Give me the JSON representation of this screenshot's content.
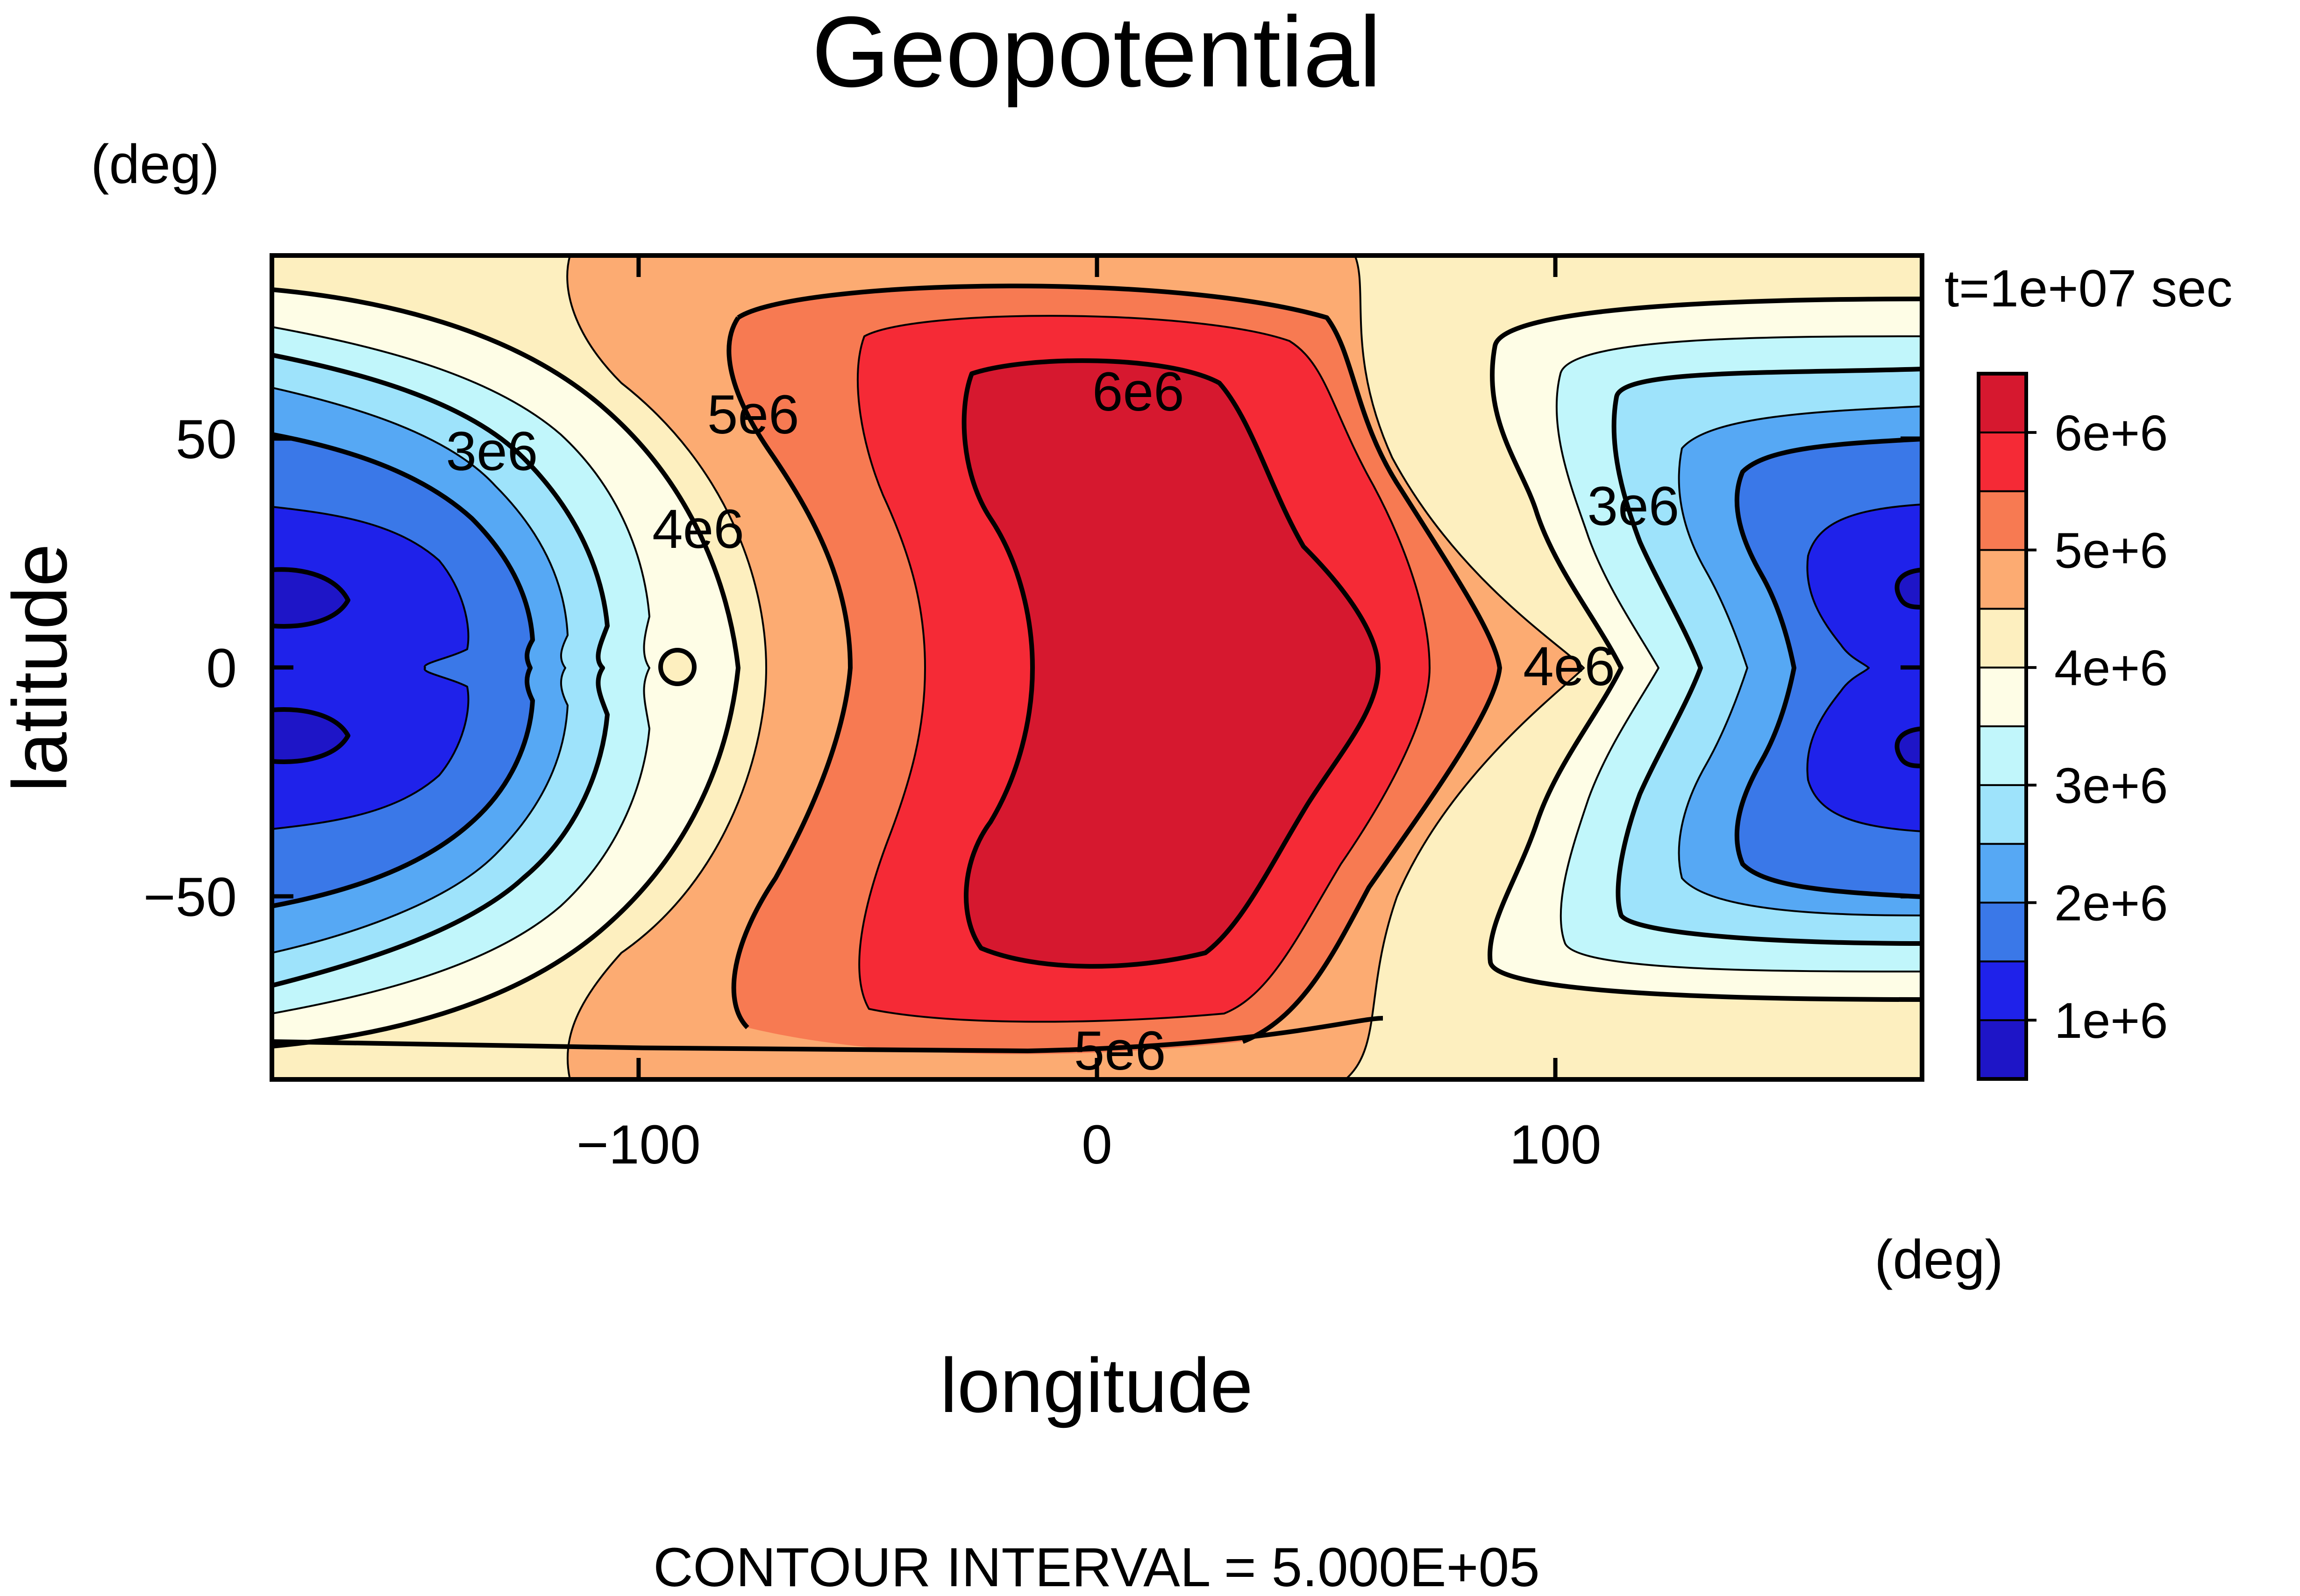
{
  "chart_data": {
    "type": "contour",
    "title": "Geopotential",
    "xlabel": "longitude",
    "ylabel": "latitude",
    "x_units": "(deg)",
    "y_units": "(deg)",
    "xlim": [
      -180,
      180
    ],
    "ylim": [
      -90,
      90
    ],
    "x_ticks": [
      -100,
      0,
      100
    ],
    "x_tick_labels": [
      "−100",
      "0",
      "100"
    ],
    "y_ticks": [
      -50,
      0,
      50
    ],
    "y_tick_labels": [
      "−50",
      "0",
      "50"
    ],
    "time_label": "t=1e+07 sec",
    "footer": "CONTOUR INTERVAL = 5.000E+05",
    "contour_interval": 500000,
    "levels": [
      1000000,
      1500000,
      2000000,
      2500000,
      3000000,
      3500000,
      4000000,
      4500000,
      5000000,
      5500000,
      6000000
    ],
    "colorbar": {
      "tick_labels": [
        "1e+6",
        "2e+6",
        "3e+6",
        "4e+6",
        "5e+6",
        "6e+6"
      ],
      "tick_values": [
        1000000,
        2000000,
        3000000,
        4000000,
        5000000,
        6000000
      ],
      "fill_colors": [
        "#1e15c7",
        "#1f22ea",
        "#3a78e8",
        "#56a8f4",
        "#9ee3fb",
        "#c1f6fb",
        "#fefde6",
        "#fdefbf",
        "#fcab72",
        "#f77a52",
        "#f52a36",
        "#d6182f"
      ]
    },
    "contour_labels": [
      {
        "text": "3e6",
        "value": 3000000,
        "x": -132,
        "y": 47
      },
      {
        "text": "4e6",
        "value": 4000000,
        "x": -87,
        "y": 30
      },
      {
        "text": "5e6",
        "value": 5000000,
        "x": -75,
        "y": 55
      },
      {
        "text": "6e6",
        "value": 6000000,
        "x": 9,
        "y": 60
      },
      {
        "text": "5e6",
        "value": 5000000,
        "x": 5,
        "y": -84
      },
      {
        "text": "3e6",
        "value": 3000000,
        "x": 117,
        "y": 35
      },
      {
        "text": "4e6",
        "value": 4000000,
        "x": 103,
        "y": 0
      }
    ]
  }
}
